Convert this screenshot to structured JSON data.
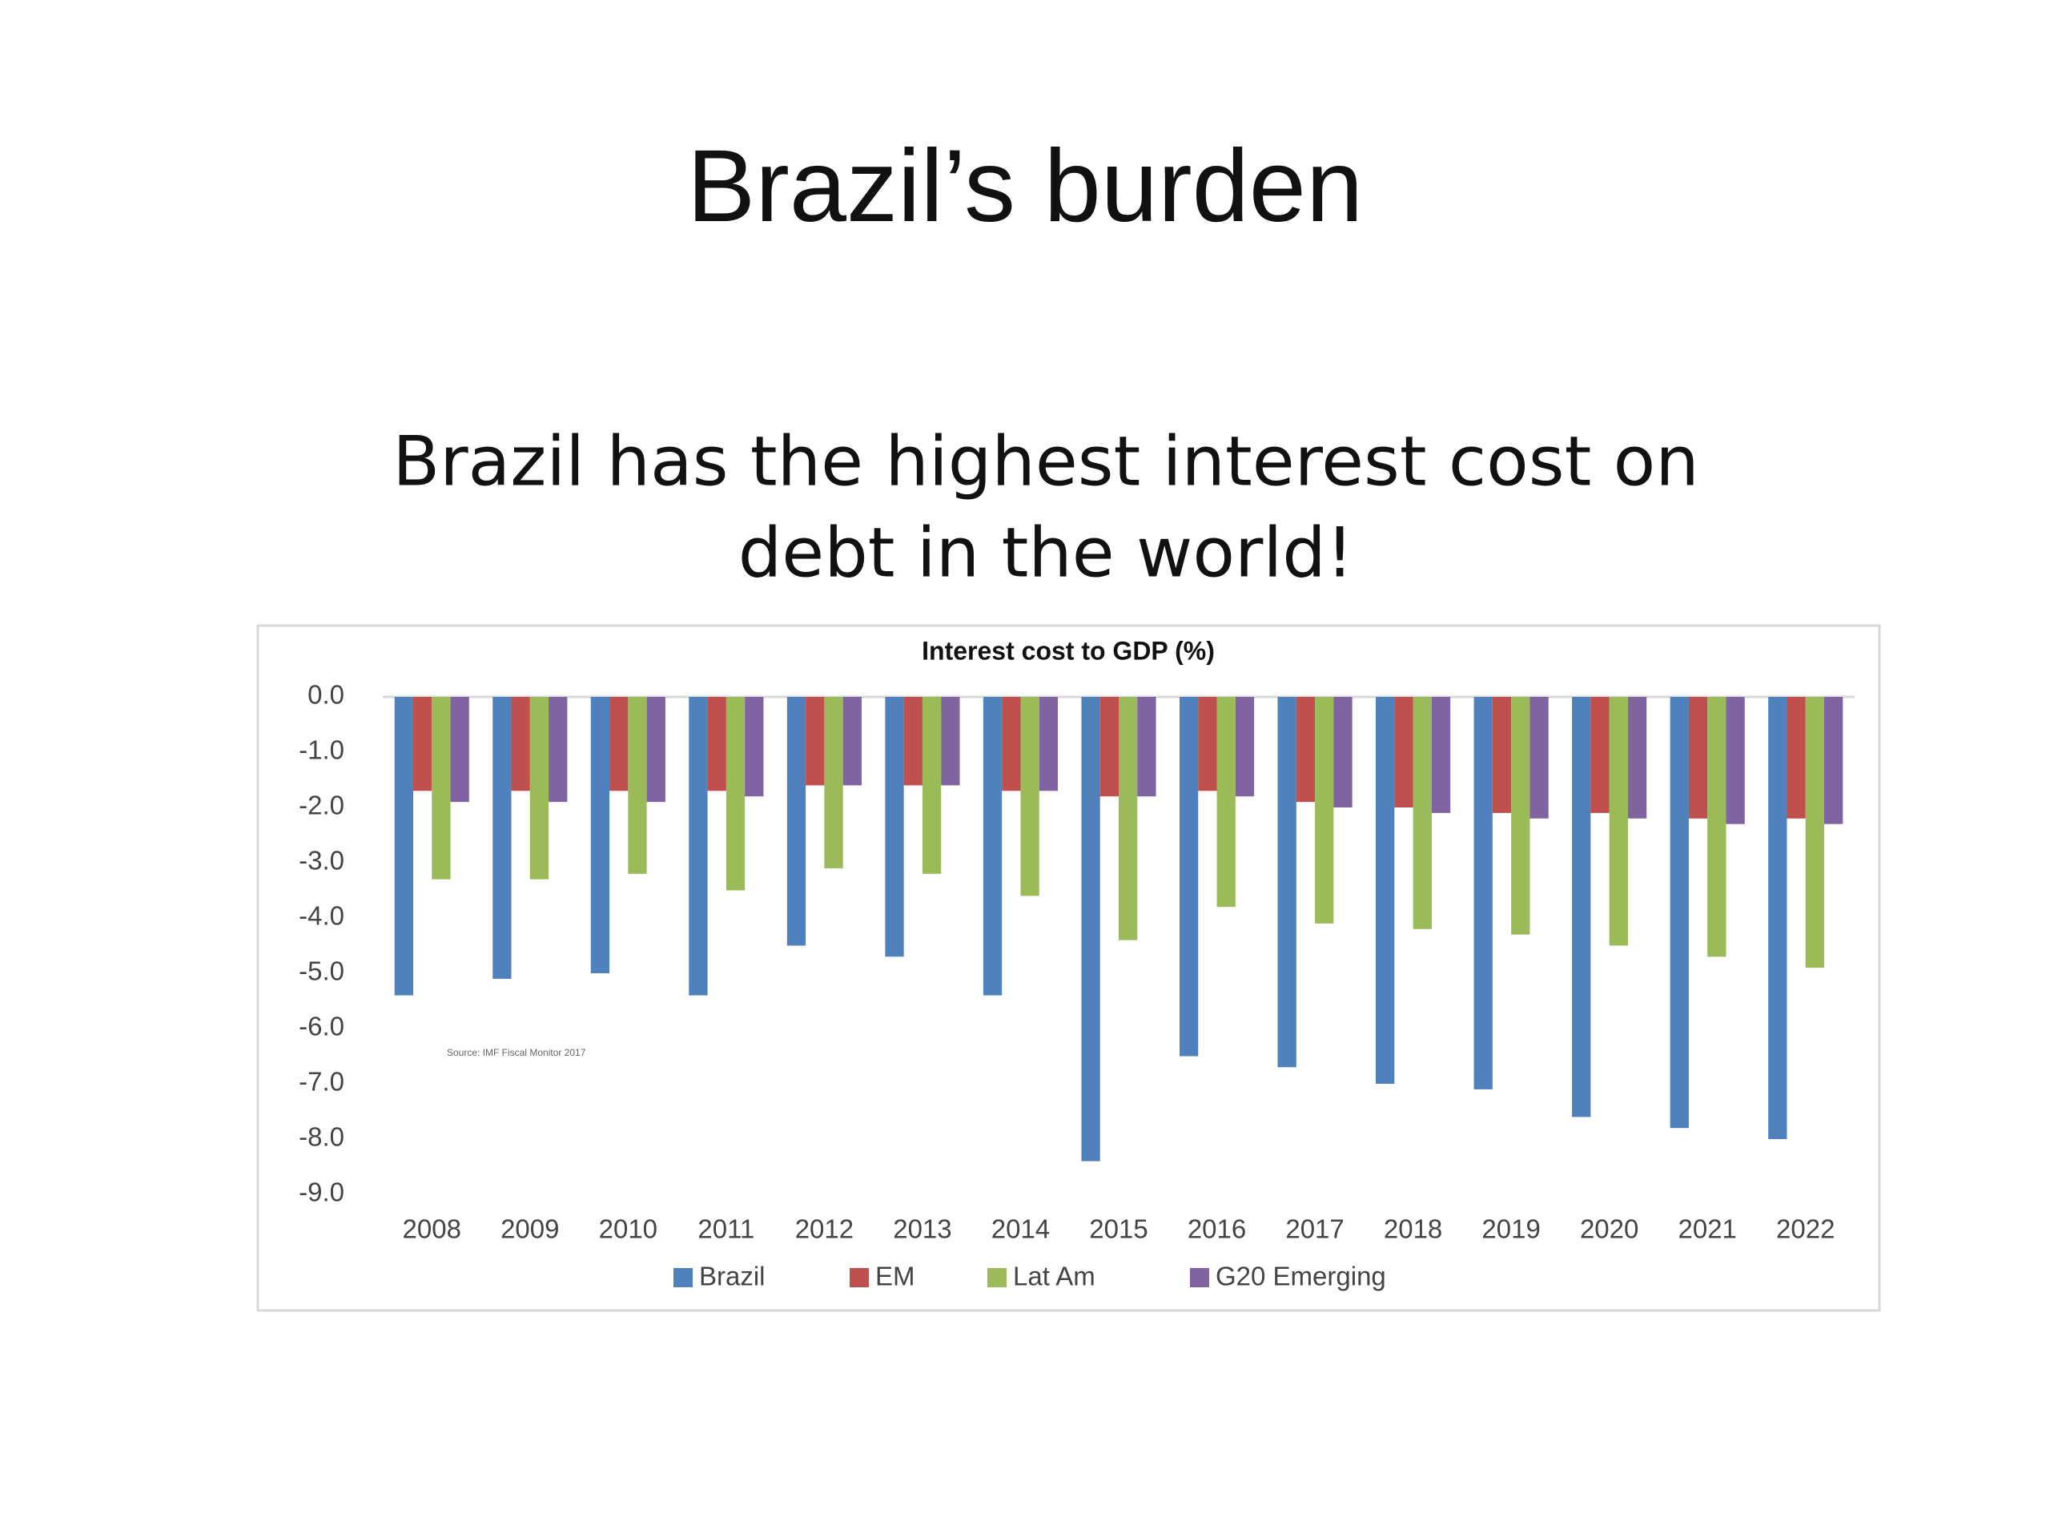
{
  "slide": {
    "title": "Brazil’s burden",
    "subtitle_lines": [
      "Brazil has the highest interest cost on",
      "debt in the world!"
    ]
  },
  "chart_data": {
    "type": "bar",
    "title": "Interest cost to GDP (%)",
    "source": "Source: IMF Fiscal Monitor 2017",
    "categories": [
      "2008",
      "2009",
      "2010",
      "2011",
      "2012",
      "2013",
      "2014",
      "2015",
      "2016",
      "2017",
      "2018",
      "2019",
      "2020",
      "2021",
      "2022"
    ],
    "series": [
      {
        "name": "Brazil",
        "color": "#4f81bd",
        "values": [
          -5.4,
          -5.1,
          -5.0,
          -5.4,
          -4.5,
          -4.7,
          -5.4,
          -8.4,
          -6.5,
          -6.7,
          -7.0,
          -7.1,
          -7.6,
          -7.8,
          -8.0
        ]
      },
      {
        "name": "EM",
        "color": "#c0504d",
        "values": [
          -1.7,
          -1.7,
          -1.7,
          -1.7,
          -1.6,
          -1.6,
          -1.7,
          -1.8,
          -1.7,
          -1.9,
          -2.0,
          -2.1,
          -2.1,
          -2.2,
          -2.2
        ]
      },
      {
        "name": "Lat Am",
        "color": "#9bbb59",
        "values": [
          -3.3,
          -3.3,
          -3.2,
          -3.5,
          -3.1,
          -3.2,
          -3.6,
          -4.4,
          -3.8,
          -4.1,
          -4.2,
          -4.3,
          -4.5,
          -4.7,
          -4.9
        ]
      },
      {
        "name": "G20 Emerging",
        "color": "#8064a2",
        "values": [
          -1.9,
          -1.9,
          -1.9,
          -1.8,
          -1.6,
          -1.6,
          -1.7,
          -1.8,
          -1.8,
          -2.0,
          -2.1,
          -2.2,
          -2.2,
          -2.3,
          -2.3
        ]
      }
    ],
    "ylim": [
      -9,
      0
    ],
    "yticks": [
      {
        "value": 0,
        "label": "0.0"
      },
      {
        "value": -1,
        "label": "-1.0"
      },
      {
        "value": -2,
        "label": "-2.0"
      },
      {
        "value": -3,
        "label": "-3.0"
      },
      {
        "value": -4,
        "label": "-4.0"
      },
      {
        "value": -5,
        "label": "-5.0"
      },
      {
        "value": -6,
        "label": "-6.0"
      },
      {
        "value": -7,
        "label": "-7.0"
      },
      {
        "value": -8,
        "label": "-8.0"
      },
      {
        "value": -9,
        "label": "-9.0"
      }
    ],
    "grid": false,
    "legend": "bottom"
  }
}
